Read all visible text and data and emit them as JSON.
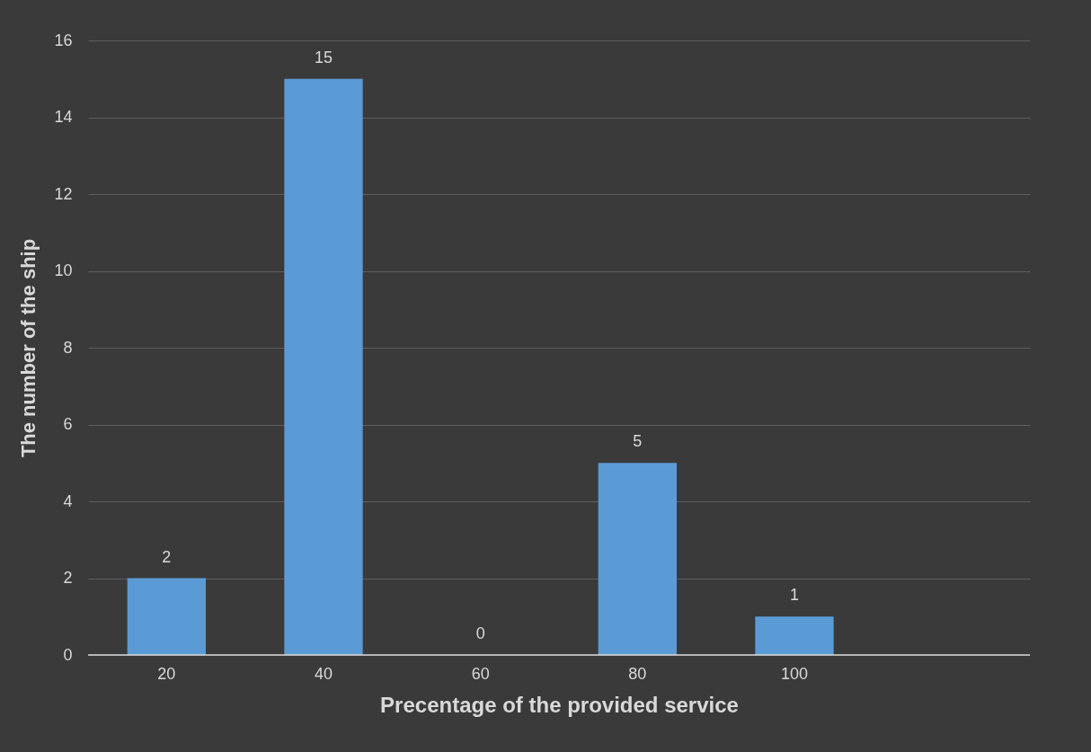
{
  "chart_data": {
    "type": "bar",
    "xlabel": "Precentage of the provided service",
    "ylabel": "The number of the ship",
    "categories": [
      "20",
      "40",
      "60",
      "80",
      "100",
      null
    ],
    "values": [
      2,
      15,
      0,
      5,
      1,
      null
    ],
    "color": "#5b9bd5",
    "ylim": [
      0,
      16
    ],
    "yticks": [
      0,
      2,
      4,
      6,
      8,
      10,
      12,
      14,
      16
    ],
    "grid": "y",
    "data_labels": true
  }
}
